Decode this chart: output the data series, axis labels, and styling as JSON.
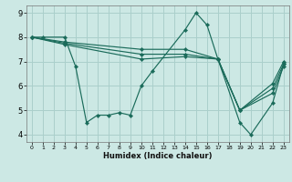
{
  "xlabel": "Humidex (Indice chaleur)",
  "bg_color": "#cce8e4",
  "grid_color": "#aacfcb",
  "line_color": "#1a6b5a",
  "xlim": [
    -0.5,
    23.5
  ],
  "ylim": [
    3.7,
    9.3
  ],
  "yticks": [
    4,
    5,
    6,
    7,
    8,
    9
  ],
  "xticks": [
    0,
    1,
    2,
    3,
    4,
    5,
    6,
    7,
    8,
    9,
    10,
    11,
    12,
    13,
    14,
    15,
    16,
    17,
    18,
    19,
    20,
    21,
    22,
    23
  ],
  "lines": [
    {
      "x": [
        0,
        1,
        3,
        4,
        5,
        6,
        7,
        8,
        9,
        10,
        11,
        14,
        15,
        16,
        17,
        19,
        20,
        22,
        23
      ],
      "y": [
        8.0,
        8.0,
        8.0,
        6.8,
        4.5,
        4.8,
        4.8,
        4.9,
        4.8,
        6.0,
        6.6,
        8.3,
        9.0,
        8.5,
        7.1,
        4.5,
        4.0,
        5.3,
        6.9
      ]
    },
    {
      "x": [
        0,
        3,
        10,
        14,
        17,
        19,
        22,
        23
      ],
      "y": [
        8.0,
        7.8,
        7.5,
        7.5,
        7.1,
        5.0,
        6.1,
        7.0
      ]
    },
    {
      "x": [
        0,
        3,
        10,
        14,
        17,
        19,
        22,
        23
      ],
      "y": [
        8.0,
        7.75,
        7.3,
        7.3,
        7.1,
        5.0,
        5.9,
        6.9
      ]
    },
    {
      "x": [
        0,
        3,
        10,
        14,
        17,
        19,
        22,
        23
      ],
      "y": [
        8.0,
        7.7,
        7.1,
        7.2,
        7.1,
        5.0,
        5.7,
        6.8
      ]
    }
  ]
}
